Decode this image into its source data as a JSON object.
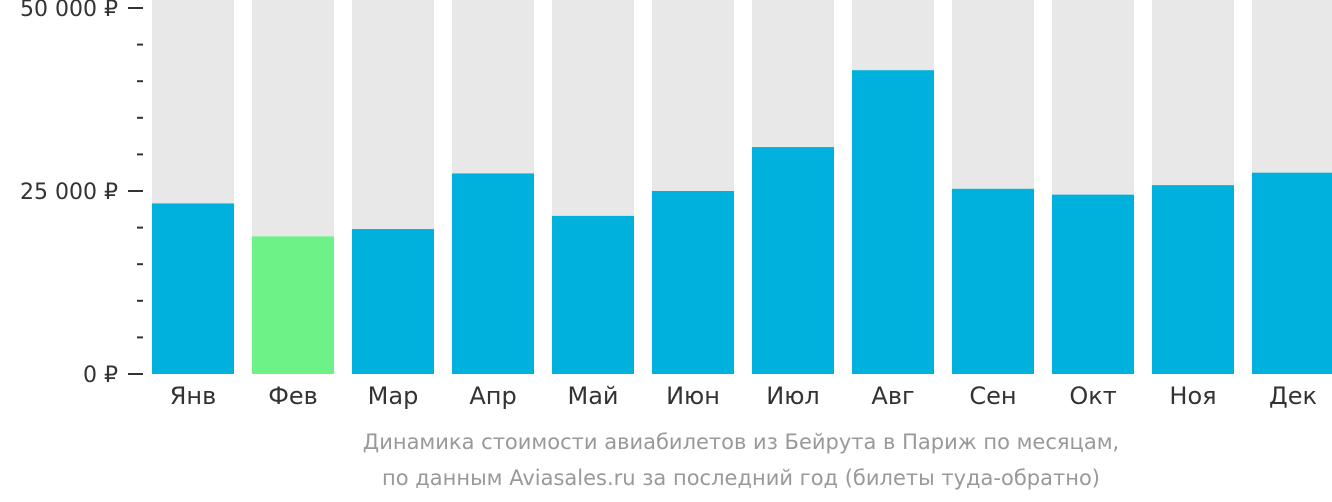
{
  "chart_data": {
    "type": "bar",
    "categories": [
      "Янв",
      "Фев",
      "Мар",
      "Апр",
      "Май",
      "Июн",
      "Июл",
      "Авг",
      "Сен",
      "Окт",
      "Ноя",
      "Дек"
    ],
    "values": [
      23300,
      18800,
      19800,
      27400,
      21600,
      25000,
      31000,
      41500,
      25300,
      24500,
      25800,
      27500
    ],
    "highlight_index": 1,
    "ylim": [
      0,
      50000
    ],
    "yticks": [
      {
        "value": 0,
        "label": "0 ₽"
      },
      {
        "value": 25000,
        "label": "25 000 ₽"
      },
      {
        "value": 50000,
        "label": "50 000 ₽"
      }
    ],
    "minor_tick_step": 5000,
    "colors": {
      "bar": "#00b0dd",
      "highlight": "#6cf287",
      "track": "#e8e8e8",
      "axis": "#333333"
    },
    "grid": false
  },
  "caption": {
    "line1": "Динамика стоимости авиабилетов из Бейрута в Париж по месяцам,",
    "line2": "по данным Aviasales.ru за последний год (билеты туда-обратно)"
  }
}
